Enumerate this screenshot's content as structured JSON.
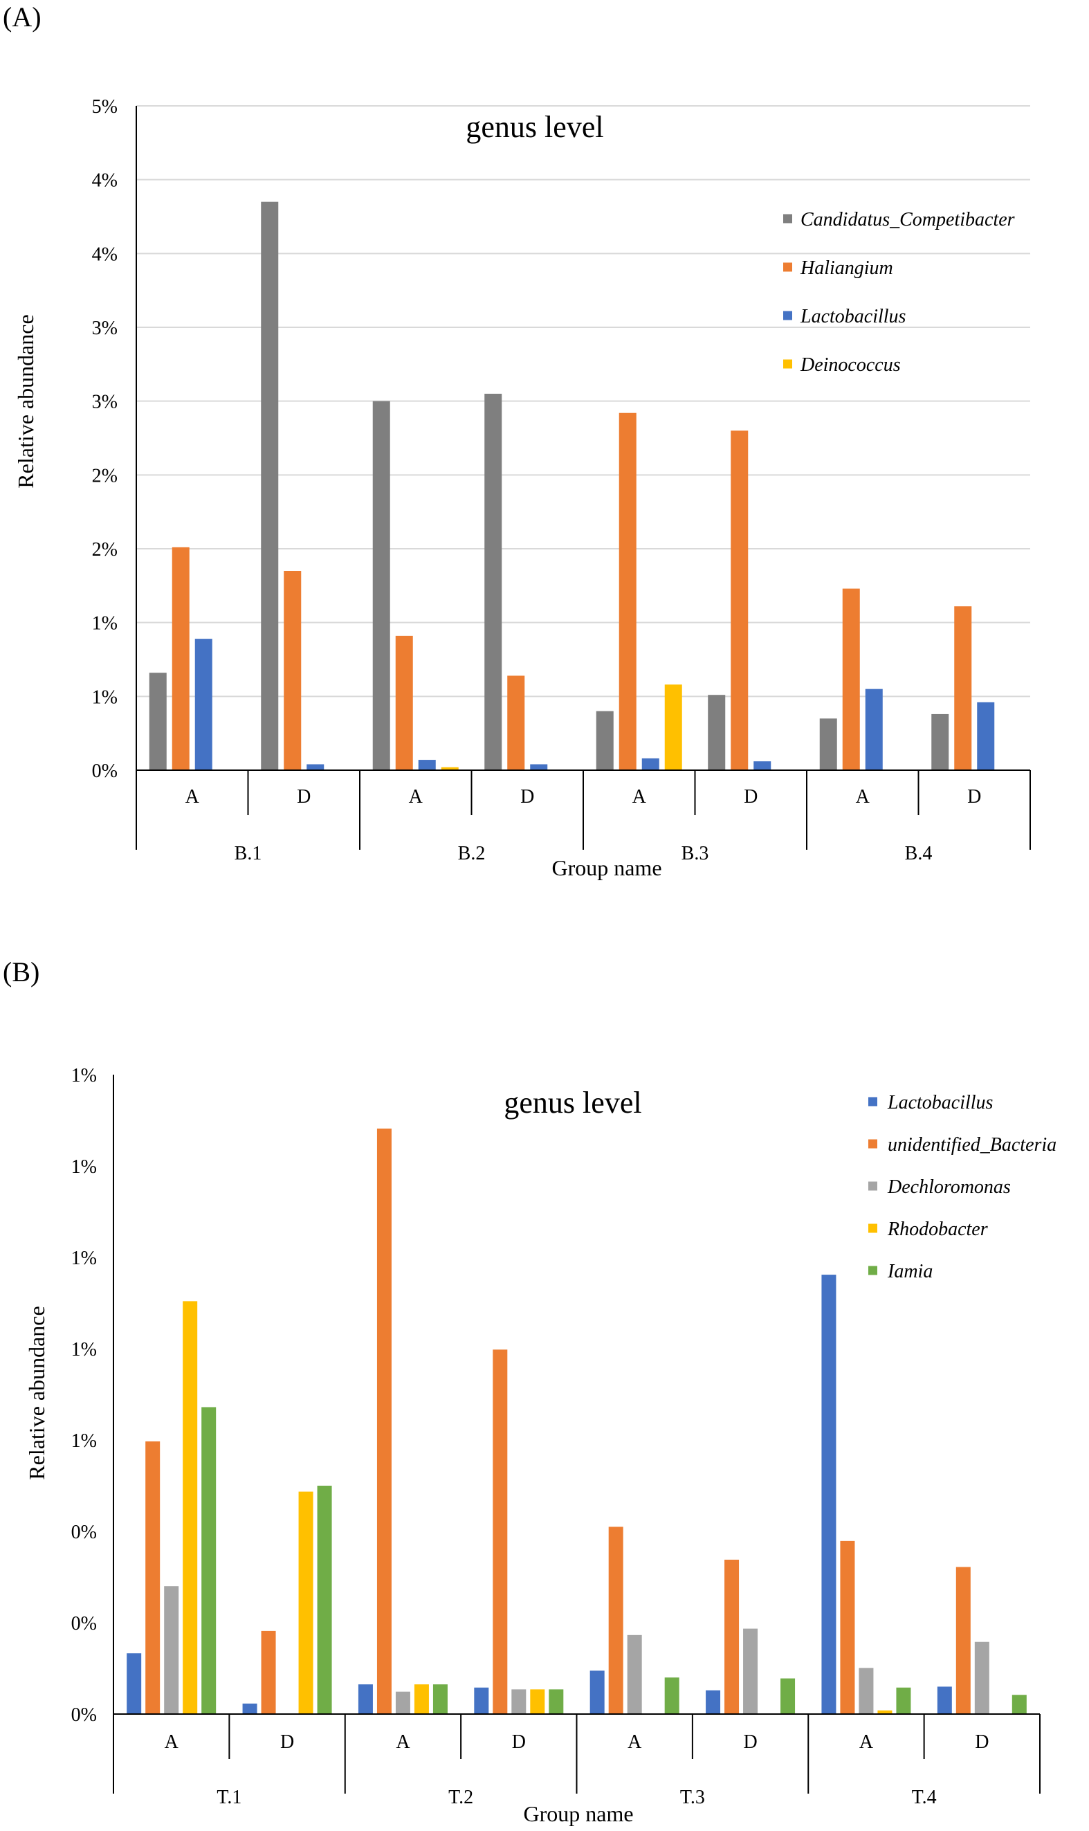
{
  "panel_labels": [
    "(A)",
    "(B)"
  ],
  "chart_data": [
    {
      "type": "bar",
      "title": "genus level",
      "xlabel": "Group name",
      "ylabel": "Relative abundance",
      "ylim": [
        0,
        4.5
      ],
      "ytick_values": [
        0,
        0.5,
        1,
        1.5,
        2,
        2.5,
        3,
        3.5,
        4,
        4.5
      ],
      "ytick_labels": [
        "0%",
        "1%",
        "1%",
        "2%",
        "2%",
        "3%",
        "3%",
        "4%",
        "4%",
        "5%"
      ],
      "categories": [
        "A",
        "D",
        "A",
        "D",
        "A",
        "D",
        "A",
        "D"
      ],
      "groups": [
        "B.1",
        "B.2",
        "B.3",
        "B.4"
      ],
      "legend_position": "top-right",
      "grid": true,
      "series": [
        {
          "name": "Candidatus_Competibacter",
          "color": "#7f7f7f",
          "values": [
            0.66,
            3.85,
            2.5,
            2.55,
            0.4,
            0.51,
            0.35,
            0.38
          ]
        },
        {
          "name": "Haliangium",
          "color": "#ed7d31",
          "values": [
            1.51,
            1.35,
            0.91,
            0.64,
            2.42,
            2.3,
            1.23,
            1.11
          ]
        },
        {
          "name": "Lactobacillus",
          "color": "#4472c4",
          "values": [
            0.89,
            0.04,
            0.07,
            0.04,
            0.08,
            0.06,
            0.55,
            0.46
          ]
        },
        {
          "name": "Deinococcus",
          "color": "#ffc000",
          "values": [
            0.0,
            0.0,
            0.02,
            0.0,
            0.58,
            0.0,
            0.0,
            0.0
          ]
        }
      ]
    },
    {
      "type": "bar",
      "title": "genus level",
      "xlabel": "Group name",
      "ylabel": "Relative abundance",
      "ylim": [
        0,
        1.4
      ],
      "ytick_values": [
        0,
        0.2,
        0.4,
        0.6,
        0.8,
        1.0,
        1.2,
        1.4
      ],
      "ytick_labels": [
        "0%",
        "0%",
        "0%",
        "1%",
        "1%",
        "1%",
        "1%",
        "1%"
      ],
      "categories": [
        "A",
        "D",
        "A",
        "D",
        "A",
        "D",
        "A",
        "D"
      ],
      "groups": [
        "T.1",
        "T.2",
        "T.3",
        "T.4"
      ],
      "legend_position": "top-right",
      "grid": false,
      "series": [
        {
          "name": "Lactobacillus",
          "color": "#4472c4",
          "values": [
            0.133,
            0.023,
            0.065,
            0.058,
            0.095,
            0.052,
            0.962,
            0.06
          ]
        },
        {
          "name": "unidentified_Bacteria",
          "color": "#ed7d31",
          "values": [
            0.597,
            0.182,
            1.282,
            0.798,
            0.41,
            0.338,
            0.379,
            0.322
          ]
        },
        {
          "name": "Dechloromonas",
          "color": "#a5a5a5",
          "values": [
            0.28,
            0.0,
            0.049,
            0.054,
            0.173,
            0.187,
            0.101,
            0.158
          ]
        },
        {
          "name": "Rhodobacter",
          "color": "#ffc000",
          "values": [
            0.904,
            0.487,
            0.065,
            0.054,
            0.0,
            0.0,
            0.008,
            0.0
          ]
        },
        {
          "name": "Iamia",
          "color": "#70ad47",
          "values": [
            0.672,
            0.5,
            0.065,
            0.054,
            0.08,
            0.078,
            0.058,
            0.042
          ]
        }
      ]
    }
  ]
}
